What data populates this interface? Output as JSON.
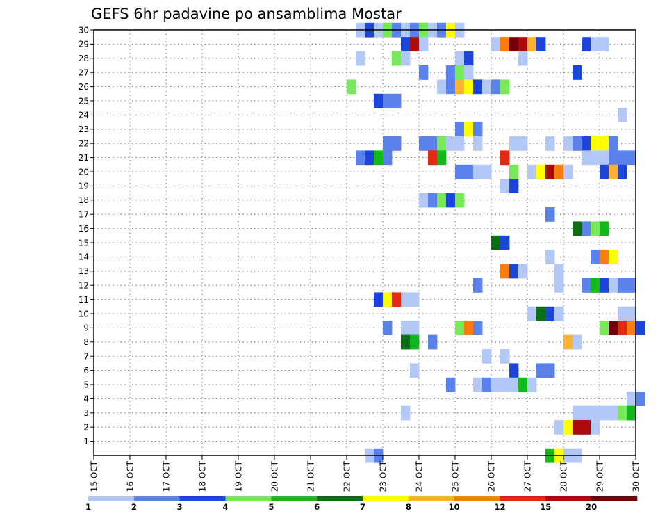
{
  "chart_data": {
    "type": "heatmap",
    "title": "GEFS 6hr padavine po ansamblima Mostar",
    "xlabel": "",
    "ylabel": "",
    "x_ticks": [
      "15 OCT",
      "16 OCT",
      "17 OCT",
      "18 OCT",
      "19 OCT",
      "20 OCT",
      "21 OCT",
      "22 OCT",
      "23 OCT",
      "24 OCT",
      "25 OCT",
      "26 OCT",
      "27 OCT",
      "28 OCT",
      "29 OCT",
      "30 OCT"
    ],
    "y_ticks": [
      "1",
      "2",
      "3",
      "4",
      "5",
      "6",
      "7",
      "8",
      "9",
      "10",
      "11",
      "12",
      "13",
      "14",
      "15",
      "16",
      "17",
      "18",
      "19",
      "20",
      "21",
      "22",
      "23",
      "24",
      "25",
      "26",
      "27",
      "28",
      "29",
      "30"
    ],
    "xlim_days": [
      15,
      30
    ],
    "ylim_members": [
      0,
      30
    ],
    "steps_per_day": 4,
    "grid": "dotted",
    "colorbar": {
      "labels": [
        "1",
        "2",
        "3",
        "4",
        "5",
        "6",
        "7",
        "8",
        "10",
        "12",
        "15",
        "20"
      ],
      "colors": [
        "#b4c8f8",
        "#5a82ea",
        "#1c46da",
        "#78ea5a",
        "#12b81c",
        "#0c6e12",
        "#ffff00",
        "#fcb232",
        "#fa7d10",
        "#e02a12",
        "#aa0c0c",
        "#72000c"
      ]
    },
    "cells_note": "each cell = [member, time step index from 15 OCT 00h, color class index 0-11]",
    "cells": [
      [
        30,
        29,
        0
      ],
      [
        30,
        30,
        2
      ],
      [
        30,
        31,
        0
      ],
      [
        30,
        32,
        3
      ],
      [
        30,
        33,
        1
      ],
      [
        30,
        34,
        0
      ],
      [
        30,
        35,
        1
      ],
      [
        30,
        36,
        3
      ],
      [
        30,
        37,
        0
      ],
      [
        30,
        38,
        1
      ],
      [
        30,
        39,
        6
      ],
      [
        30,
        40,
        0
      ],
      [
        29,
        34,
        2
      ],
      [
        29,
        35,
        10
      ],
      [
        29,
        36,
        0
      ],
      [
        29,
        44,
        0
      ],
      [
        29,
        45,
        8
      ],
      [
        29,
        46,
        11
      ],
      [
        29,
        47,
        10
      ],
      [
        29,
        48,
        7
      ],
      [
        29,
        49,
        2
      ],
      [
        29,
        54,
        2
      ],
      [
        29,
        55,
        0
      ],
      [
        29,
        56,
        0
      ],
      [
        28,
        29,
        0
      ],
      [
        28,
        33,
        3
      ],
      [
        28,
        34,
        0
      ],
      [
        28,
        40,
        0
      ],
      [
        28,
        41,
        2
      ],
      [
        28,
        47,
        0
      ],
      [
        27,
        36,
        1
      ],
      [
        27,
        39,
        1
      ],
      [
        27,
        40,
        3
      ],
      [
        27,
        41,
        0
      ],
      [
        27,
        53,
        2
      ],
      [
        26,
        28,
        3
      ],
      [
        26,
        38,
        0
      ],
      [
        26,
        39,
        1
      ],
      [
        26,
        40,
        7
      ],
      [
        26,
        41,
        6
      ],
      [
        26,
        42,
        2
      ],
      [
        26,
        43,
        0
      ],
      [
        26,
        44,
        1
      ],
      [
        26,
        45,
        3
      ],
      [
        25,
        31,
        2
      ],
      [
        25,
        32,
        1
      ],
      [
        25,
        33,
        1
      ],
      [
        24,
        58,
        0
      ],
      [
        23,
        40,
        1
      ],
      [
        23,
        41,
        6
      ],
      [
        23,
        42,
        1
      ],
      [
        22,
        32,
        1
      ],
      [
        22,
        33,
        1
      ],
      [
        22,
        36,
        1
      ],
      [
        22,
        37,
        1
      ],
      [
        22,
        38,
        3
      ],
      [
        22,
        39,
        0
      ],
      [
        22,
        40,
        0
      ],
      [
        22,
        42,
        0
      ],
      [
        22,
        46,
        0
      ],
      [
        22,
        47,
        0
      ],
      [
        22,
        50,
        0
      ],
      [
        22,
        52,
        0
      ],
      [
        22,
        53,
        1
      ],
      [
        22,
        54,
        2
      ],
      [
        22,
        55,
        6
      ],
      [
        22,
        56,
        6
      ],
      [
        22,
        57,
        1
      ],
      [
        21,
        29,
        1
      ],
      [
        21,
        30,
        2
      ],
      [
        21,
        31,
        4
      ],
      [
        21,
        32,
        1
      ],
      [
        21,
        37,
        9
      ],
      [
        21,
        38,
        4
      ],
      [
        21,
        45,
        9
      ],
      [
        21,
        54,
        0
      ],
      [
        21,
        55,
        0
      ],
      [
        21,
        56,
        0
      ],
      [
        21,
        57,
        1
      ],
      [
        21,
        58,
        1
      ],
      [
        21,
        59,
        1
      ],
      [
        20,
        40,
        1
      ],
      [
        20,
        41,
        1
      ],
      [
        20,
        42,
        0
      ],
      [
        20,
        43,
        0
      ],
      [
        20,
        46,
        3
      ],
      [
        20,
        48,
        0
      ],
      [
        20,
        49,
        6
      ],
      [
        20,
        50,
        10
      ],
      [
        20,
        51,
        8
      ],
      [
        20,
        52,
        0
      ],
      [
        20,
        56,
        2
      ],
      [
        20,
        57,
        7
      ],
      [
        20,
        58,
        2
      ],
      [
        19,
        45,
        0
      ],
      [
        19,
        46,
        2
      ],
      [
        18,
        36,
        0
      ],
      [
        18,
        37,
        1
      ],
      [
        18,
        38,
        3
      ],
      [
        18,
        39,
        2
      ],
      [
        18,
        40,
        3
      ],
      [
        17,
        50,
        1
      ],
      [
        16,
        53,
        5
      ],
      [
        16,
        54,
        1
      ],
      [
        16,
        55,
        3
      ],
      [
        16,
        56,
        4
      ],
      [
        15,
        44,
        5
      ],
      [
        15,
        45,
        2
      ],
      [
        14,
        50,
        0
      ],
      [
        14,
        55,
        1
      ],
      [
        14,
        56,
        8
      ],
      [
        14,
        57,
        6
      ],
      [
        13,
        45,
        8
      ],
      [
        13,
        46,
        2
      ],
      [
        13,
        47,
        0
      ],
      [
        13,
        51,
        0
      ],
      [
        12,
        42,
        1
      ],
      [
        12,
        51,
        0
      ],
      [
        12,
        54,
        1
      ],
      [
        12,
        55,
        4
      ],
      [
        12,
        56,
        2
      ],
      [
        12,
        57,
        0
      ],
      [
        12,
        58,
        1
      ],
      [
        12,
        59,
        1
      ],
      [
        11,
        31,
        2
      ],
      [
        11,
        32,
        6
      ],
      [
        11,
        33,
        9
      ],
      [
        11,
        34,
        0
      ],
      [
        11,
        35,
        0
      ],
      [
        10,
        48,
        0
      ],
      [
        10,
        49,
        5
      ],
      [
        10,
        50,
        2
      ],
      [
        10,
        51,
        0
      ],
      [
        10,
        58,
        0
      ],
      [
        10,
        59,
        0
      ],
      [
        9,
        32,
        1
      ],
      [
        9,
        34,
        0
      ],
      [
        9,
        35,
        0
      ],
      [
        9,
        40,
        3
      ],
      [
        9,
        41,
        8
      ],
      [
        9,
        42,
        1
      ],
      [
        9,
        56,
        3
      ],
      [
        9,
        57,
        11
      ],
      [
        9,
        58,
        9
      ],
      [
        9,
        59,
        8
      ],
      [
        9,
        60,
        2
      ],
      [
        8,
        34,
        5
      ],
      [
        8,
        35,
        4
      ],
      [
        8,
        37,
        1
      ],
      [
        8,
        52,
        7
      ],
      [
        8,
        53,
        0
      ],
      [
        7,
        43,
        0
      ],
      [
        7,
        45,
        0
      ],
      [
        6,
        35,
        0
      ],
      [
        6,
        46,
        2
      ],
      [
        6,
        49,
        1
      ],
      [
        6,
        50,
        1
      ],
      [
        5,
        39,
        1
      ],
      [
        5,
        42,
        0
      ],
      [
        5,
        43,
        1
      ],
      [
        5,
        44,
        0
      ],
      [
        5,
        45,
        0
      ],
      [
        5,
        46,
        0
      ],
      [
        5,
        47,
        4
      ],
      [
        5,
        48,
        0
      ],
      [
        4,
        59,
        0
      ],
      [
        4,
        60,
        1
      ],
      [
        3,
        34,
        0
      ],
      [
        3,
        53,
        0
      ],
      [
        3,
        54,
        0
      ],
      [
        3,
        55,
        0
      ],
      [
        3,
        56,
        0
      ],
      [
        3,
        57,
        0
      ],
      [
        3,
        58,
        3
      ],
      [
        3,
        59,
        4
      ],
      [
        2,
        51,
        0
      ],
      [
        2,
        52,
        6
      ],
      [
        2,
        53,
        10
      ],
      [
        2,
        54,
        10
      ],
      [
        2,
        55,
        0
      ],
      [
        0,
        30,
        0
      ],
      [
        0,
        31,
        1
      ],
      [
        0,
        50,
        4
      ],
      [
        0,
        51,
        6
      ],
      [
        0,
        52,
        0
      ],
      [
        0,
        53,
        0
      ]
    ]
  }
}
